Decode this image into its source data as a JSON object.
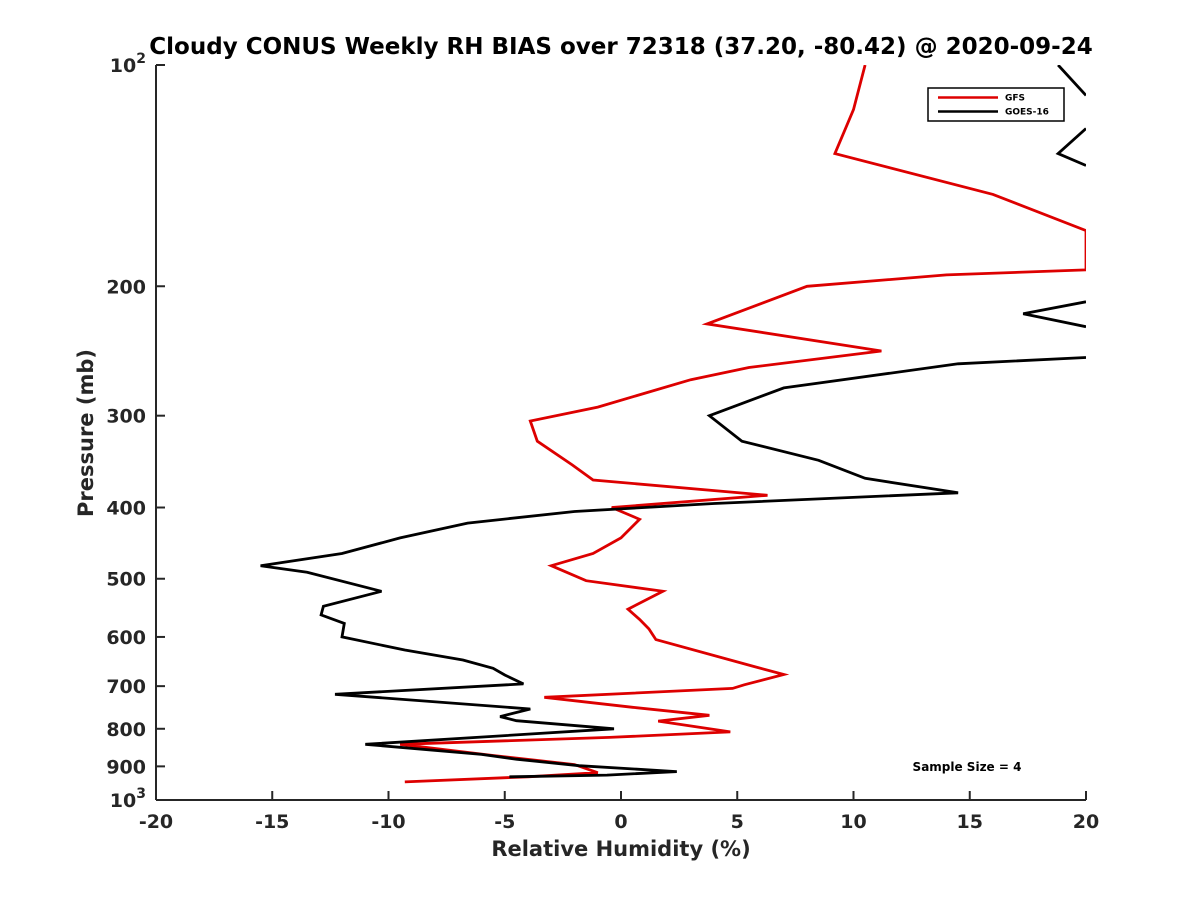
{
  "chart_data": {
    "type": "line",
    "title": "Cloudy CONUS Weekly RH BIAS over 72318 (37.20, -80.42) @ 2020-09-24",
    "xlabel": "Relative Humidity (%)",
    "ylabel": "Pressure (mb)",
    "xlim": [
      -20,
      20
    ],
    "ylim": [
      100,
      1000
    ],
    "y_scale": "log",
    "y_reversed": true,
    "x_ticks": [
      -20,
      -15,
      -10,
      -5,
      0,
      5,
      10,
      15,
      20
    ],
    "x_tick_labels": [
      "-20",
      "-15",
      "-10",
      "-5",
      "0",
      "5",
      "10",
      "15",
      "20"
    ],
    "y_ticks": [
      100,
      200,
      300,
      400,
      500,
      600,
      700,
      800,
      900,
      1000
    ],
    "y_tick_labels": [
      {
        "base": "10",
        "exp": "2"
      },
      {
        "base": "200",
        "exp": ""
      },
      {
        "base": "300",
        "exp": ""
      },
      {
        "base": "400",
        "exp": ""
      },
      {
        "base": "500",
        "exp": ""
      },
      {
        "base": "600",
        "exp": ""
      },
      {
        "base": "700",
        "exp": ""
      },
      {
        "base": "800",
        "exp": ""
      },
      {
        "base": "900",
        "exp": ""
      },
      {
        "base": "10",
        "exp": "3"
      }
    ],
    "legend": {
      "position": "top-right"
    },
    "annotation": "Sample Size = 4",
    "series": [
      {
        "name": "GFS",
        "color": "#dd0000",
        "points": [
          [
            10.5,
            100
          ],
          [
            10.0,
            115
          ],
          [
            9.2,
            132
          ],
          [
            16.0,
            150
          ],
          [
            20.0,
            168
          ],
          [
            20.0,
            190
          ],
          [
            14.0,
            193
          ],
          [
            8.0,
            200
          ],
          [
            3.7,
            225
          ],
          [
            11.2,
            245
          ],
          [
            5.5,
            258
          ],
          [
            3.0,
            268
          ],
          [
            -1.0,
            292
          ],
          [
            -3.9,
            305
          ],
          [
            -3.6,
            325
          ],
          [
            -2.1,
            350
          ],
          [
            -1.2,
            367
          ],
          [
            6.3,
            385
          ],
          [
            -0.4,
            400
          ],
          [
            0.8,
            415
          ],
          [
            0.0,
            440
          ],
          [
            -1.2,
            462
          ],
          [
            -3.0,
            480
          ],
          [
            -1.5,
            503
          ],
          [
            1.8,
            520
          ],
          [
            0.3,
            550
          ],
          [
            0.8,
            568
          ],
          [
            1.2,
            585
          ],
          [
            1.5,
            605
          ],
          [
            5.7,
            658
          ],
          [
            7.0,
            675
          ],
          [
            5.3,
            697
          ],
          [
            4.8,
            705
          ],
          [
            -3.3,
            725
          ],
          [
            0.5,
            748
          ],
          [
            3.8,
            767
          ],
          [
            1.6,
            781
          ],
          [
            4.7,
            808
          ],
          [
            -0.5,
            822
          ],
          [
            -9.5,
            840
          ],
          [
            -5.5,
            870
          ],
          [
            -2.0,
            895
          ],
          [
            -1.0,
            918
          ],
          [
            -4.0,
            930
          ],
          [
            -9.3,
            945
          ]
        ]
      },
      {
        "name": "GOES-16",
        "color": "#000000",
        "segments": [
          [
            [
              18.8,
              100
            ],
            [
              20.0,
              110
            ]
          ],
          [
            [
              20.0,
              122
            ],
            [
              18.8,
              132
            ],
            [
              20.0,
              137
            ]
          ],
          [
            [
              20.0,
              210
            ],
            [
              17.3,
              218
            ],
            [
              20.0,
              227
            ]
          ],
          [
            [
              20.0,
              250
            ],
            [
              14.5,
              255
            ],
            [
              7.0,
              275
            ],
            [
              3.8,
              300
            ],
            [
              5.2,
              325
            ],
            [
              8.5,
              345
            ],
            [
              10.5,
              365
            ],
            [
              14.5,
              382
            ],
            [
              4.0,
              395
            ],
            [
              -2.0,
              405
            ],
            [
              -6.6,
              420
            ],
            [
              -9.5,
              440
            ],
            [
              -12.0,
              462
            ],
            [
              -15.5,
              480
            ],
            [
              -13.5,
              490
            ],
            [
              -10.3,
              520
            ],
            [
              -12.8,
              545
            ],
            [
              -12.9,
              560
            ],
            [
              -11.9,
              575
            ],
            [
              -12.0,
              600
            ],
            [
              -9.3,
              625
            ],
            [
              -6.8,
              645
            ],
            [
              -5.5,
              662
            ],
            [
              -5.0,
              676
            ],
            [
              -4.2,
              695
            ],
            [
              -12.3,
              718
            ],
            [
              -3.9,
              752
            ],
            [
              -5.2,
              770
            ],
            [
              -4.5,
              780
            ],
            [
              -0.3,
              800
            ],
            [
              -11.0,
              840
            ],
            [
              -6.0,
              867
            ],
            [
              -4.5,
              880
            ],
            [
              -1.8,
              898
            ],
            [
              2.4,
              915
            ],
            [
              -0.6,
              925
            ],
            [
              -4.8,
              930
            ]
          ]
        ]
      }
    ]
  }
}
